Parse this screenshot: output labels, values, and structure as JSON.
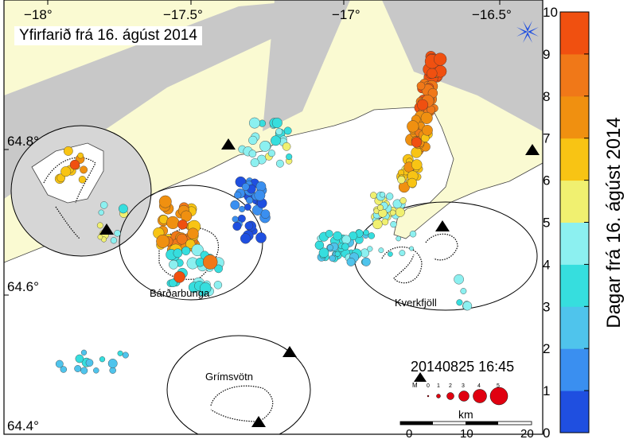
{
  "title": "Yfirfarið frá 16. ágúst 2014",
  "timestamp": "20140825 16:45",
  "colorbar": {
    "label": "Dagar frá 16. ágúst 2014",
    "min": 0,
    "max": 10,
    "ticks": [
      "0",
      "1",
      "2",
      "3",
      "4",
      "5",
      "6",
      "7",
      "8",
      "9",
      "10"
    ],
    "colors": [
      "#1f4fe0",
      "#3a8ff0",
      "#4fc4ec",
      "#36dede",
      "#8cf0f0",
      "#f0f070",
      "#f8c414",
      "#f09010",
      "#f07818",
      "#f05010"
    ]
  },
  "axes": {
    "lon_ticks": [
      "−18°",
      "−17.5°",
      "−17°",
      "−16.5°"
    ],
    "lat_ticks": [
      "64.8°",
      "64.6°",
      "64.4°"
    ]
  },
  "places": {
    "bardarbunga": "Bárðarbunga",
    "grimsvotn": "Grímsvötn",
    "kverkfjoll": "Kverkfjöll"
  },
  "magnitude_legend": {
    "label": "M",
    "values": [
      "0",
      "1",
      "2",
      "3",
      "4",
      "5"
    ]
  },
  "scale_bar": {
    "unit": "km",
    "ticks": [
      "0",
      "10",
      "20"
    ]
  },
  "colors": {
    "glacier": "#ffffff",
    "sea_gray": "#c8c8c8",
    "land": "#fafad2",
    "station": "#000000"
  },
  "icons": {
    "north": "compass-rose-icon",
    "station": "triangle-icon"
  },
  "chart_data": {
    "type": "scatter",
    "title": "Yfirfarið frá 16. ágúst 2014",
    "color_variable": "Dagar frá 16. ágúst 2014",
    "color_range": [
      0,
      10
    ],
    "xlim": [
      -18.1,
      -16.35
    ],
    "ylim": [
      64.38,
      64.96
    ],
    "clusters": [
      {
        "lon": -16.7,
        "lat": 64.87,
        "days": 9.5,
        "mag": 2.5,
        "count": 20,
        "spread": [
          0.02,
          0.015
        ]
      },
      {
        "lon": -16.72,
        "lat": 64.83,
        "days": 8.8,
        "mag": 2.0,
        "count": 20,
        "spread": [
          0.03,
          0.02
        ]
      },
      {
        "lon": -16.75,
        "lat": 64.78,
        "days": 7.5,
        "mag": 1.8,
        "count": 28,
        "spread": [
          0.03,
          0.025
        ]
      },
      {
        "lon": -16.78,
        "lat": 64.73,
        "days": 6.5,
        "mag": 1.5,
        "count": 22,
        "spread": [
          0.03,
          0.02
        ]
      },
      {
        "lon": -16.85,
        "lat": 64.68,
        "days": 5.2,
        "mag": 1.3,
        "count": 28,
        "spread": [
          0.05,
          0.02
        ]
      },
      {
        "lon": -17.0,
        "lat": 64.63,
        "days": 3.4,
        "mag": 1.3,
        "count": 40,
        "spread": [
          0.08,
          0.02
        ]
      },
      {
        "lon": -17.25,
        "lat": 64.77,
        "days": 4.5,
        "mag": 1.5,
        "count": 26,
        "spread": [
          0.08,
          0.03
        ]
      },
      {
        "lon": -17.3,
        "lat": 64.68,
        "days": 1.2,
        "mag": 1.5,
        "count": 38,
        "spread": [
          0.05,
          0.04
        ]
      },
      {
        "lon": -17.54,
        "lat": 64.66,
        "days": 7.5,
        "mag": 2.2,
        "count": 34,
        "spread": [
          0.06,
          0.035
        ]
      },
      {
        "lon": -17.48,
        "lat": 64.6,
        "days": 4.0,
        "mag": 1.8,
        "count": 28,
        "spread": [
          0.08,
          0.03
        ]
      },
      {
        "lon": -17.75,
        "lat": 64.66,
        "days": 4.6,
        "mag": 1.2,
        "count": 10,
        "spread": [
          0.04,
          0.03
        ]
      },
      {
        "lon": -17.88,
        "lat": 64.74,
        "days": 7.0,
        "mag": 1.4,
        "count": 12,
        "spread": [
          0.04,
          0.02
        ]
      },
      {
        "lon": -17.82,
        "lat": 64.48,
        "days": 3.0,
        "mag": 1.0,
        "count": 14,
        "spread": [
          0.12,
          0.02
        ]
      },
      {
        "lon": -16.85,
        "lat": 64.63,
        "days": 4.0,
        "mag": 0.8,
        "count": 8,
        "spread": [
          0.08,
          0.02
        ]
      },
      {
        "lon": -16.6,
        "lat": 64.57,
        "days": 4.2,
        "mag": 1.2,
        "count": 6,
        "spread": [
          0.03,
          0.02
        ]
      }
    ],
    "highlights": [
      {
        "lon": -17.53,
        "lat": 64.59,
        "days": 9.8,
        "mag": 2.3
      },
      {
        "lon": -17.52,
        "lat": 64.66,
        "days": 9.6,
        "mag": 1.8
      },
      {
        "lon": -17.87,
        "lat": 64.74,
        "days": 9.4,
        "mag": 1.8
      },
      {
        "lon": -16.74,
        "lat": 64.82,
        "days": 9.7,
        "mag": 2.2
      },
      {
        "lon": -16.76,
        "lat": 64.77,
        "days": 9.0,
        "mag": 2.0
      },
      {
        "lon": -17.43,
        "lat": 64.61,
        "days": 8.5,
        "mag": 3.2
      }
    ]
  }
}
